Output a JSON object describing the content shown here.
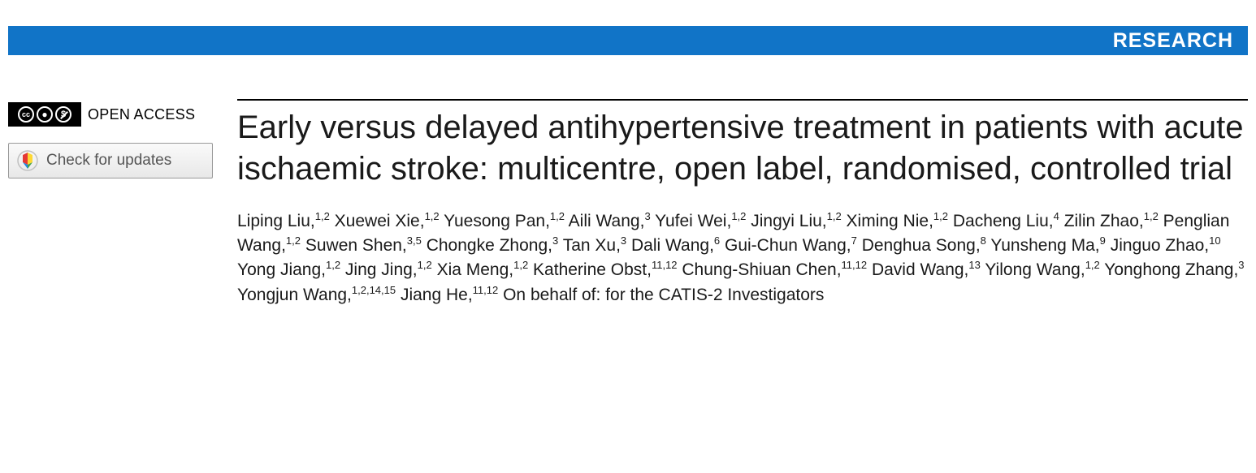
{
  "banner": {
    "label": "RESEARCH",
    "background": "#1174c7",
    "text_color": "#ffffff"
  },
  "sidebar": {
    "open_access_label": "OPEN ACCESS",
    "cc_glyphs": [
      "CC",
      "①",
      "$"
    ],
    "updates_label": "Check for updates"
  },
  "article": {
    "title": "Early versus delayed antihypertensive treatment in patients with acute ischaemic stroke: multicentre, open label, randomised, controlled trial",
    "title_fontsize": 40,
    "authors": [
      {
        "name": "Liping Liu",
        "affil": "1,2"
      },
      {
        "name": "Xuewei Xie",
        "affil": "1,2"
      },
      {
        "name": "Yuesong Pan",
        "affil": "1,2"
      },
      {
        "name": "Aili Wang",
        "affil": "3"
      },
      {
        "name": "Yufei Wei",
        "affil": "1,2"
      },
      {
        "name": "Jingyi Liu",
        "affil": "1,2"
      },
      {
        "name": "Ximing Nie",
        "affil": "1,2"
      },
      {
        "name": "Dacheng Liu",
        "affil": "4"
      },
      {
        "name": "Zilin Zhao",
        "affil": "1,2"
      },
      {
        "name": "Penglian Wang",
        "affil": "1,2"
      },
      {
        "name": "Suwen Shen",
        "affil": "3,5"
      },
      {
        "name": "Chongke Zhong",
        "affil": "3"
      },
      {
        "name": "Tan Xu",
        "affil": "3"
      },
      {
        "name": "Dali Wang",
        "affil": "6"
      },
      {
        "name": "Gui-Chun Wang",
        "affil": "7"
      },
      {
        "name": "Denghua Song",
        "affil": "8"
      },
      {
        "name": "Yunsheng Ma",
        "affil": "9"
      },
      {
        "name": "Jinguo Zhao",
        "affil": "10"
      },
      {
        "name": "Yong Jiang",
        "affil": "1,2"
      },
      {
        "name": "Jing Jing",
        "affil": "1,2"
      },
      {
        "name": "Xia Meng",
        "affil": "1,2"
      },
      {
        "name": "Katherine Obst",
        "affil": "11,12"
      },
      {
        "name": "Chung-Shiuan Chen",
        "affil": "11,12"
      },
      {
        "name": "David Wang",
        "affil": "13"
      },
      {
        "name": "Yilong Wang",
        "affil": "1,2"
      },
      {
        "name": "Yonghong Zhang",
        "affil": "3"
      },
      {
        "name": "Yongjun Wang",
        "affil": "1,2,14,15"
      },
      {
        "name": "Jiang He",
        "affil": "11,12"
      }
    ],
    "author_suffix": "On behalf of: for the CATIS-2 Investigators",
    "author_fontsize": 21
  },
  "colors": {
    "banner_bg": "#1174c7",
    "text": "#1a1a1a",
    "rule": "#000000",
    "button_border": "#999999"
  }
}
